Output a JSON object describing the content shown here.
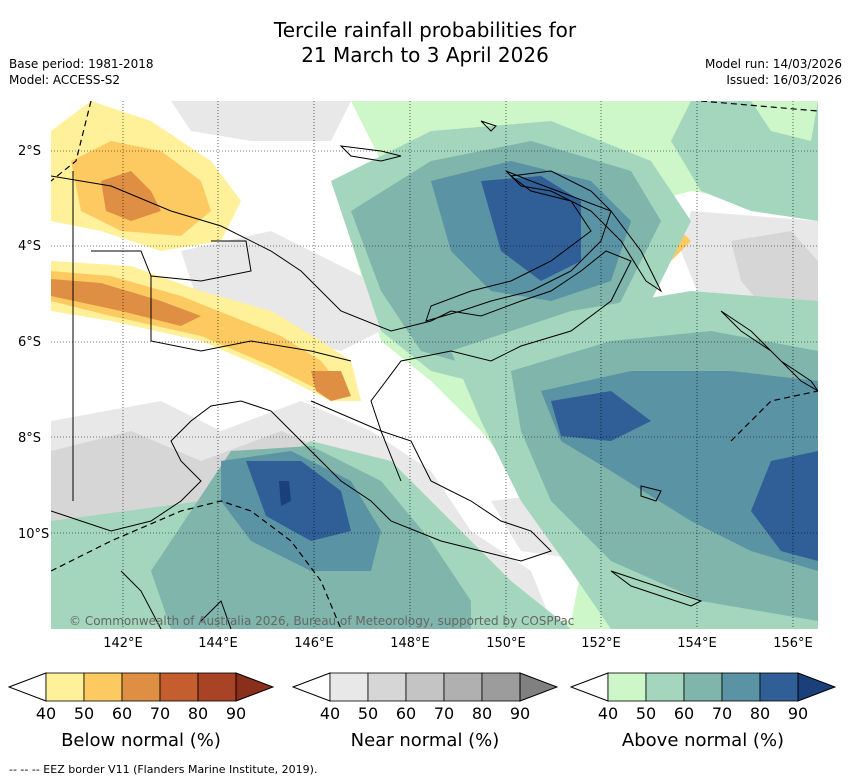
{
  "title_line1": "Tercile rainfall probabilities for",
  "title_line2": "21 March to 3 April 2026",
  "base_period": "Base period: 1981-2018",
  "model": "Model: ACCESS-S2",
  "model_run": "Model run: 14/03/2026",
  "issued": "Issued: 16/03/2026",
  "copyright": "© Commonwealth of Australia 2026, Bureau of Meteorology, supported by COSPPac",
  "lat_labels": [
    "2°S",
    "4°S",
    "6°S",
    "8°S",
    "10°S"
  ],
  "lon_labels": [
    "142°E",
    "144°E",
    "146°E",
    "148°E",
    "150°E",
    "152°E",
    "154°E",
    "156°E"
  ],
  "colorbars": [
    {
      "title": "Below normal (%)",
      "ticks": [
        "40",
        "50",
        "60",
        "70",
        "80",
        "90"
      ],
      "colors": [
        "#fff09a",
        "#fdca62",
        "#df8f44",
        "#c45e2f",
        "#a84425",
        "#8a2f1c"
      ]
    },
    {
      "title": "Near normal (%)",
      "ticks": [
        "40",
        "50",
        "60",
        "70",
        "80",
        "90"
      ],
      "colors": [
        "#e8e8e8",
        "#d6d6d6",
        "#c4c4c4",
        "#b0b0b0",
        "#9c9c9c",
        "#808080"
      ]
    },
    {
      "title": "Above normal (%)",
      "ticks": [
        "40",
        "50",
        "60",
        "70",
        "80",
        "90"
      ],
      "colors": [
        "#cdf7c8",
        "#a3d6bd",
        "#7fb5aa",
        "#5a93a3",
        "#2f5f96",
        "#1a3f7a"
      ]
    }
  ],
  "footer": "--  --  -- EEZ border V11 (Flanders Marine Institute, 2019)."
}
